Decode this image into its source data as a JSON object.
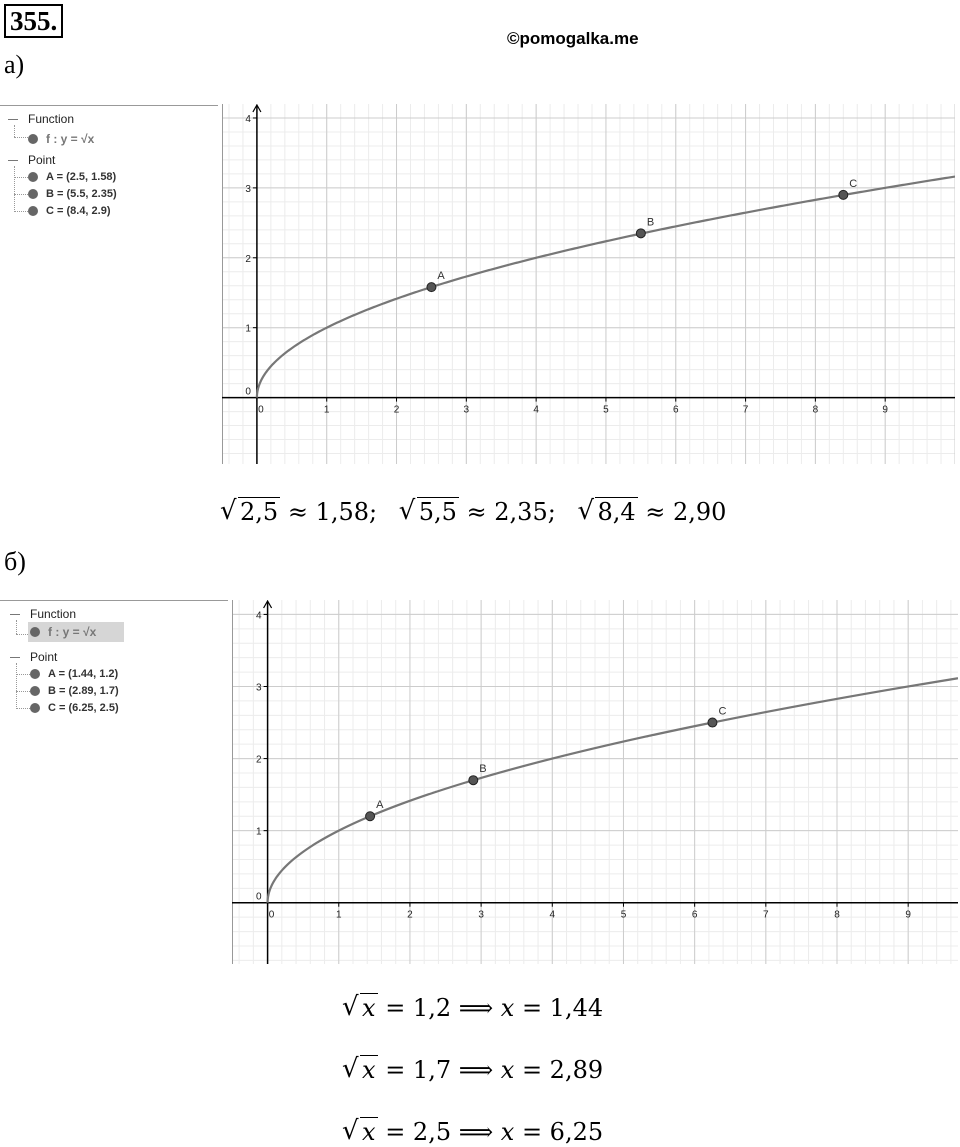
{
  "header": {
    "problem_number": "355.",
    "watermark": "©pomogalka.me"
  },
  "parts": {
    "a_label": "а)",
    "b_label": "б)"
  },
  "algebra_a": {
    "function_header": "Function",
    "function_text": "f : y = √x",
    "point_header": "Point",
    "points": [
      "A = (2.5, 1.58)",
      "B = (5.5, 2.35)",
      "C = (8.4, 2.9)"
    ]
  },
  "algebra_b": {
    "function_header": "Function",
    "function_text": "f : y = √x",
    "point_header": "Point",
    "points": [
      "A = (1.44, 1.2)",
      "B = (2.89, 1.7)",
      "C = (6.25, 2.5)"
    ]
  },
  "equations_a": [
    {
      "arg": "2,5",
      "rest": "≈ 1,58;"
    },
    {
      "arg": "5,5",
      "rest": "≈ 2,35;"
    },
    {
      "arg": "8,4",
      "rest": "≈ 2,90"
    }
  ],
  "equations_b": [
    {
      "var": "x",
      "rhs": "= 1,2 ⟹ ",
      "var2": "x",
      "val": " = 1,44"
    },
    {
      "var": "x",
      "rhs": "= 1,7 ⟹ ",
      "var2": "x",
      "val": " = 2,89"
    },
    {
      "var": "x",
      "rhs": "= 2,5 ⟹ ",
      "var2": "x",
      "val": " = 6,25"
    }
  ],
  "chart_data": [
    {
      "type": "line",
      "function": "y = sqrt(x)",
      "xlim": [
        -0.5,
        10
      ],
      "ylim": [
        -0.95,
        4.2
      ],
      "x_ticks": [
        "0",
        "1",
        "2",
        "3",
        "4",
        "5",
        "6",
        "7",
        "8",
        "9"
      ],
      "y_ticks": [
        "0",
        "1",
        "2",
        "3",
        "4"
      ],
      "grid": true,
      "points": [
        {
          "label": "A",
          "x": 2.5,
          "y": 1.58
        },
        {
          "label": "B",
          "x": 5.5,
          "y": 2.35
        },
        {
          "label": "C",
          "x": 8.4,
          "y": 2.9
        }
      ],
      "colors": {
        "curve": "#777777",
        "point": "#555555",
        "grid": "#cccccc"
      }
    },
    {
      "type": "line",
      "function": "y = sqrt(x)",
      "xlim": [
        -0.5,
        9.7
      ],
      "ylim": [
        -0.85,
        4.2
      ],
      "x_ticks": [
        "0",
        "1",
        "2",
        "3",
        "4",
        "5",
        "6",
        "7",
        "8",
        "9"
      ],
      "y_ticks": [
        "0",
        "1",
        "2",
        "3",
        "4"
      ],
      "grid": true,
      "points": [
        {
          "label": "A",
          "x": 1.44,
          "y": 1.2
        },
        {
          "label": "B",
          "x": 2.89,
          "y": 1.7
        },
        {
          "label": "C",
          "x": 6.25,
          "y": 2.5
        }
      ],
      "colors": {
        "curve": "#777777",
        "point": "#555555",
        "grid": "#cccccc"
      }
    }
  ]
}
